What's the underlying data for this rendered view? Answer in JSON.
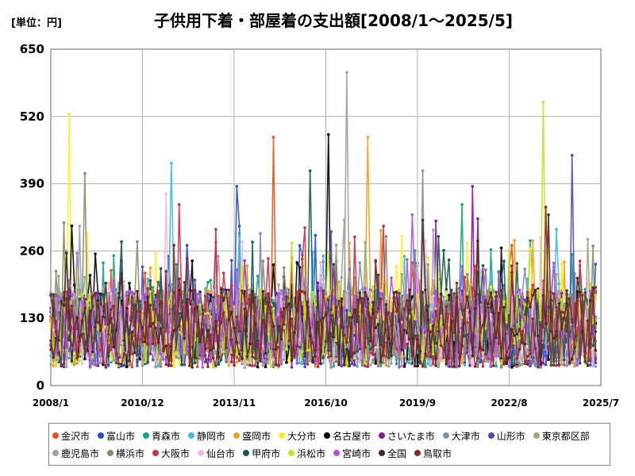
{
  "unit_label": "[単位：円]",
  "chart_data": {
    "type": "line",
    "title": "子供用下着・部屋着の支出額[2008/1～2025/5]",
    "xlabel": "",
    "ylabel": "",
    "ylim": [
      0,
      650
    ],
    "yticks": [
      0,
      130,
      260,
      390,
      520,
      650
    ],
    "xticks": [
      "2008/1",
      "2010/12",
      "2013/11",
      "2016/10",
      "2019/9",
      "2022/8",
      "2025/7"
    ],
    "x_start": "2008/1",
    "x_end": "2025/5",
    "grid": true,
    "legend_position": "bottom",
    "series": [
      {
        "name": "金沢市",
        "color": "#e8501c",
        "peak": 480,
        "peak_month": "2015/2"
      },
      {
        "name": "富山市",
        "color": "#1f4fd8",
        "peak": 385,
        "peak_month": "2013/12"
      },
      {
        "name": "青森市",
        "color": "#1aa37a",
        "peak": 350,
        "peak_month": "2021/2"
      },
      {
        "name": "静岡市",
        "color": "#3fb8e8",
        "peak": 430,
        "peak_month": "2011/11"
      },
      {
        "name": "盛岡市",
        "color": "#f2a020",
        "peak": 480,
        "peak_month": "2018/2"
      },
      {
        "name": "大分市",
        "color": "#ffee22",
        "peak": 525,
        "peak_month": "2008/8"
      },
      {
        "name": "名古屋市",
        "color": "#000000",
        "peak": 485,
        "peak_month": "2016/11"
      },
      {
        "name": "さいたま市",
        "color": "#8a1a9a",
        "peak": 385,
        "peak_month": "2021/6"
      },
      {
        "name": "大津市",
        "color": "#7f8fa6",
        "peak": 415,
        "peak_month": "2019/11"
      },
      {
        "name": "山形市",
        "color": "#4a4ac0",
        "peak": 445,
        "peak_month": "2024/8"
      },
      {
        "name": "東京都区部",
        "color": "#9aa87a",
        "peak": 320,
        "peak_month": "2017/5"
      },
      {
        "name": "鹿児島市",
        "color": "#a89aaa",
        "peak": 605,
        "peak_month": "2017/6"
      },
      {
        "name": "横浜市",
        "color": "#8a8a6a",
        "peak": 410,
        "peak_month": "2009/2"
      },
      {
        "name": "大阪市",
        "color": "#c8304a",
        "peak": 350,
        "peak_month": "2012/2"
      },
      {
        "name": "仙台市",
        "color": "#f0b8e8",
        "peak": 370,
        "peak_month": "2011/9"
      },
      {
        "name": "甲府市",
        "color": "#1a5a4a",
        "peak": 415,
        "peak_month": "2016/4"
      },
      {
        "name": "浜松市",
        "color": "#c8e020",
        "peak": 548,
        "peak_month": "2023/9"
      },
      {
        "name": "宮崎市",
        "color": "#a855e8",
        "peak": 330,
        "peak_month": "2019/7"
      },
      {
        "name": "全国",
        "color": "#4a2a1a",
        "peak": 330,
        "peak_month": "2023/11"
      },
      {
        "name": "鳥取市",
        "color": "#8a2a2a",
        "peak": 345,
        "peak_month": "2023/10"
      }
    ]
  }
}
